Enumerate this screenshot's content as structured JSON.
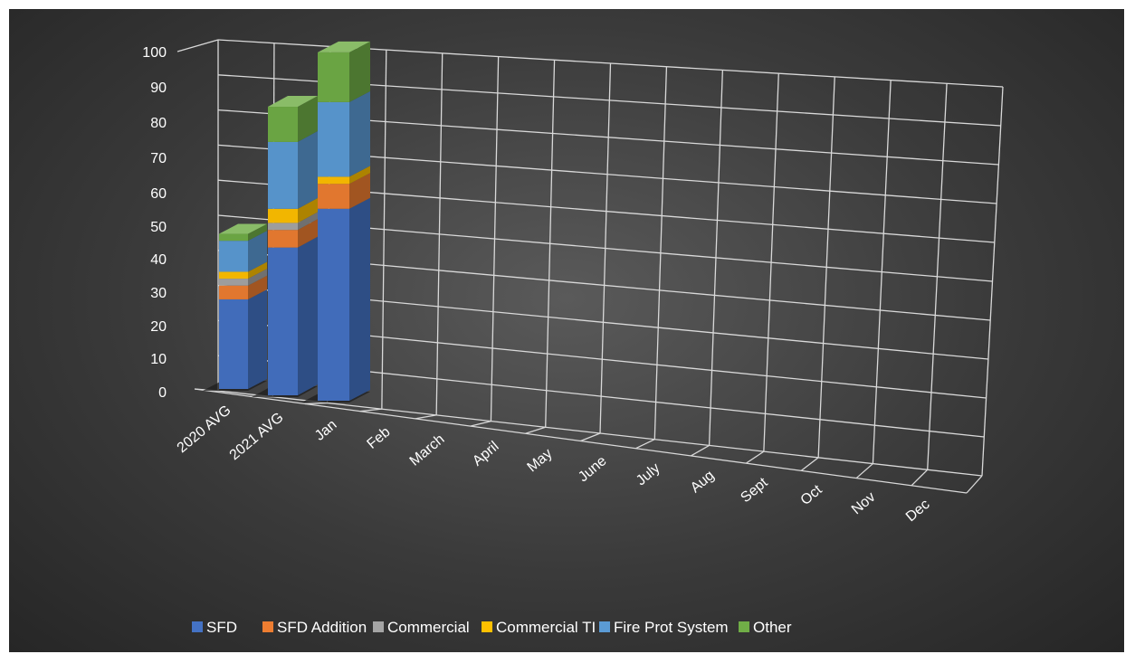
{
  "chart_data": {
    "type": "bar",
    "stacked": true,
    "three_d": true,
    "categories": [
      "2020 AVG",
      "2021 AVG",
      "Jan",
      "Feb",
      "March",
      "April",
      "May",
      "June",
      "July",
      "Aug",
      "Sept",
      "Oct",
      "Nov",
      "Dec"
    ],
    "series": [
      {
        "name": "SFD",
        "color": "#4472C4",
        "values": [
          26,
          42,
          54,
          0,
          0,
          0,
          0,
          0,
          0,
          0,
          0,
          0,
          0,
          0
        ]
      },
      {
        "name": "SFD Addition",
        "color": "#ED7D31",
        "values": [
          4,
          5,
          7,
          0,
          0,
          0,
          0,
          0,
          0,
          0,
          0,
          0,
          0,
          0
        ]
      },
      {
        "name": "Commercial",
        "color": "#A5A5A5",
        "values": [
          2,
          2,
          0,
          0,
          0,
          0,
          0,
          0,
          0,
          0,
          0,
          0,
          0,
          0
        ]
      },
      {
        "name": "Commercial TI",
        "color": "#FFC000",
        "values": [
          2,
          4,
          2,
          0,
          0,
          0,
          0,
          0,
          0,
          0,
          0,
          0,
          0,
          0
        ]
      },
      {
        "name": "Fire Prot System",
        "color": "#5B9BD5",
        "values": [
          9,
          19,
          21,
          0,
          0,
          0,
          0,
          0,
          0,
          0,
          0,
          0,
          0,
          0
        ]
      },
      {
        "name": "Other",
        "color": "#70AD47",
        "values": [
          2,
          10,
          14,
          0,
          0,
          0,
          0,
          0,
          0,
          0,
          0,
          0,
          0,
          0
        ]
      }
    ],
    "y_ticks": [
      "0",
      "10",
      "20",
      "30",
      "40",
      "50",
      "60",
      "70",
      "80",
      "90",
      "100"
    ],
    "ylim": [
      0,
      100
    ],
    "grid": true,
    "legend_position": "bottom",
    "title": "",
    "xlabel": "",
    "ylabel": ""
  }
}
